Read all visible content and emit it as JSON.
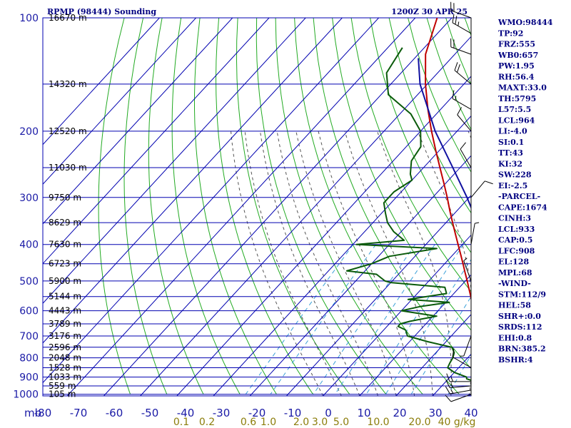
{
  "header": {
    "station": "RPMP (98444) Sounding",
    "time": "1200Z 30 APR 25"
  },
  "colors": {
    "grid": "#0000b0",
    "dry_adiabat": "#22aa22",
    "moist_adiabat": "#555555",
    "mixing_ratio": "#3aa0d8",
    "temperature": "#c00000",
    "dewpoint": "#0a5a0a",
    "parcel": "#1010a0",
    "wind": "#000000"
  },
  "chart_data": {
    "type": "skew-t",
    "pressure_axis": {
      "unit_label": "mb",
      "levels": [
        100,
        200,
        300,
        400,
        500,
        600,
        700,
        800,
        900,
        1000
      ],
      "range": [
        100,
        1010
      ]
    },
    "temperature_axis": {
      "ticks": [
        "-80",
        "-70",
        "-60",
        "-50",
        "-40",
        "-30",
        "-20",
        "-10",
        "0",
        "10",
        "20",
        "30",
        "40"
      ],
      "values": [
        -80,
        -70,
        -60,
        -50,
        -40,
        -30,
        -20,
        -10,
        0,
        10,
        20,
        30,
        40
      ]
    },
    "mixing_ratio_labels": [
      "0.1",
      "0.2",
      "0.6",
      "1.0",
      "2.0",
      "3.0",
      "5.0",
      "10.0",
      "20.0",
      "40 g/kg"
    ],
    "mixing_ratio_values": [
      0.1,
      0.2,
      0.6,
      1.0,
      2.0,
      3.0,
      5.0,
      10.0,
      20.0,
      40.0
    ],
    "height_labels": [
      {
        "p": 100,
        "text": "16670 m"
      },
      {
        "p": 150,
        "text": "14320 m"
      },
      {
        "p": 200,
        "text": "12520 m"
      },
      {
        "p": 250,
        "text": "11030 m"
      },
      {
        "p": 300,
        "text": "9750 m"
      },
      {
        "p": 350,
        "text": "8629 m"
      },
      {
        "p": 400,
        "text": "7630 m"
      },
      {
        "p": 450,
        "text": "6723 m"
      },
      {
        "p": 500,
        "text": "5900 m"
      },
      {
        "p": 550,
        "text": "5144 m"
      },
      {
        "p": 600,
        "text": "4443 m"
      },
      {
        "p": 650,
        "text": "3789 m"
      },
      {
        "p": 700,
        "text": "3176 m"
      },
      {
        "p": 750,
        "text": "2596 m"
      },
      {
        "p": 800,
        "text": "2048 m"
      },
      {
        "p": 850,
        "text": "1528 m"
      },
      {
        "p": 900,
        "text": "1033 m"
      },
      {
        "p": 950,
        "text": "559 m"
      },
      {
        "p": 1000,
        "text": "105 m"
      }
    ],
    "series": [
      {
        "key": "temperature",
        "points": [
          [
            1004,
            29
          ],
          [
            1000,
            28
          ],
          [
            975,
            25.5
          ],
          [
            950,
            23.2
          ],
          [
            925,
            21.5
          ],
          [
            900,
            19.8
          ],
          [
            875,
            18.3
          ],
          [
            850,
            16.6
          ],
          [
            825,
            15
          ],
          [
            800,
            13.6
          ],
          [
            775,
            12
          ],
          [
            750,
            10.2
          ],
          [
            725,
            8.6
          ],
          [
            700,
            7
          ],
          [
            675,
            5.2
          ],
          [
            650,
            3.4
          ],
          [
            625,
            1.6
          ],
          [
            600,
            -0.4
          ],
          [
            575,
            -2.4
          ],
          [
            550,
            -4.6
          ],
          [
            525,
            -7
          ],
          [
            500,
            -9.5
          ],
          [
            475,
            -12.2
          ],
          [
            450,
            -15
          ],
          [
            425,
            -18
          ],
          [
            400,
            -21.2
          ],
          [
            375,
            -24.6
          ],
          [
            350,
            -28.2
          ],
          [
            325,
            -32
          ],
          [
            300,
            -36
          ],
          [
            275,
            -40.5
          ],
          [
            250,
            -45.5
          ],
          [
            225,
            -51
          ],
          [
            200,
            -57
          ],
          [
            175,
            -63.5
          ],
          [
            150,
            -70.5
          ],
          [
            125,
            -78
          ],
          [
            100,
            -84
          ]
        ]
      },
      {
        "key": "dewpoint",
        "points": [
          [
            1004,
            23
          ],
          [
            1000,
            22.8
          ],
          [
            975,
            22
          ],
          [
            960,
            21
          ],
          [
            950,
            20
          ],
          [
            925,
            18
          ],
          [
            910,
            15
          ],
          [
            900,
            14.5
          ],
          [
            875,
            10
          ],
          [
            850,
            7
          ],
          [
            825,
            6.4
          ],
          [
            800,
            5.9
          ],
          [
            775,
            5
          ],
          [
            750,
            3
          ],
          [
            725,
            -5
          ],
          [
            700,
            -12
          ],
          [
            675,
            -14
          ],
          [
            660,
            -17
          ],
          [
            650,
            -17
          ],
          [
            640,
            -15
          ],
          [
            620,
            -9
          ],
          [
            600,
            -20
          ],
          [
            585,
            -16
          ],
          [
            570,
            -9
          ],
          [
            560,
            -21
          ],
          [
            540,
            -12
          ],
          [
            520,
            -14
          ],
          [
            505,
            -30
          ],
          [
            500,
            -32
          ],
          [
            480,
            -36
          ],
          [
            470,
            -45
          ],
          [
            450,
            -40
          ],
          [
            430,
            -37
          ],
          [
            410,
            -26
          ],
          [
            400,
            -49
          ],
          [
            390,
            -37
          ],
          [
            370,
            -42
          ],
          [
            350,
            -46
          ],
          [
            330,
            -49
          ],
          [
            310,
            -52
          ],
          [
            290,
            -52
          ],
          [
            270,
            -50
          ],
          [
            260,
            -52
          ],
          [
            240,
            -55
          ],
          [
            220,
            -56
          ],
          [
            200,
            -60
          ],
          [
            180,
            -67
          ],
          [
            160,
            -78
          ],
          [
            140,
            -84
          ],
          [
            120,
            -86
          ]
        ]
      },
      {
        "key": "parcel",
        "points": [
          [
            1004,
            29
          ],
          [
            964,
            24.5
          ],
          [
            950,
            23.9
          ],
          [
            900,
            21.9
          ],
          [
            850,
            19.8
          ],
          [
            800,
            17.6
          ],
          [
            750,
            15.1
          ],
          [
            700,
            12.4
          ],
          [
            650,
            9.4
          ],
          [
            600,
            5.9
          ],
          [
            550,
            2
          ],
          [
            500,
            -2.4
          ],
          [
            450,
            -7.6
          ],
          [
            400,
            -13.8
          ],
          [
            350,
            -21.4
          ],
          [
            300,
            -30.6
          ],
          [
            250,
            -42
          ],
          [
            200,
            -56
          ],
          [
            150,
            -72
          ],
          [
            128,
            -79
          ]
        ]
      }
    ],
    "wind_barbs": [
      {
        "p": 1000,
        "dir": 250,
        "spd": 10
      },
      {
        "p": 975,
        "dir": 260,
        "spd": 15
      },
      {
        "p": 950,
        "dir": 265,
        "spd": 15
      },
      {
        "p": 925,
        "dir": 270,
        "spd": 15
      },
      {
        "p": 850,
        "dir": 300,
        "spd": 10
      },
      {
        "p": 700,
        "dir": 200,
        "spd": 5
      },
      {
        "p": 500,
        "dir": 340,
        "spd": 5
      },
      {
        "p": 400,
        "dir": 10,
        "spd": 5
      },
      {
        "p": 300,
        "dir": 40,
        "spd": 10
      },
      {
        "p": 250,
        "dir": 330,
        "spd": 10
      },
      {
        "p": 200,
        "dir": 320,
        "spd": 10
      },
      {
        "p": 175,
        "dir": 300,
        "spd": 15
      },
      {
        "p": 150,
        "dir": 310,
        "spd": 20
      },
      {
        "p": 125,
        "dir": 290,
        "spd": 20
      },
      {
        "p": 110,
        "dir": 300,
        "spd": 25
      },
      {
        "p": 100,
        "dir": 290,
        "spd": 20
      }
    ],
    "indices": [
      "WMO:98444",
      "TP:92",
      "FRZ:555",
      "WB0:657",
      "PW:1.95",
      "RH:56.4",
      "MAXT:33.0",
      "TH:5795",
      "L57:5.5",
      "LCL:964",
      "LI:-4.0",
      "SI:0.1",
      "TT:43",
      "KI:32",
      "SW:228",
      "EI:-2.5",
      "-PARCEL-",
      "CAPE:1674",
      "CINH:3",
      "LCL:933",
      "CAP:0.5",
      "LFC:908",
      "EL:128",
      "MPL:68",
      "-WIND-",
      "STM:112/9",
      "HEL:58",
      "SHR+:0.0",
      "SRDS:112",
      "EHI:0.8",
      "BRN:385.2",
      "BSHR:4"
    ]
  }
}
